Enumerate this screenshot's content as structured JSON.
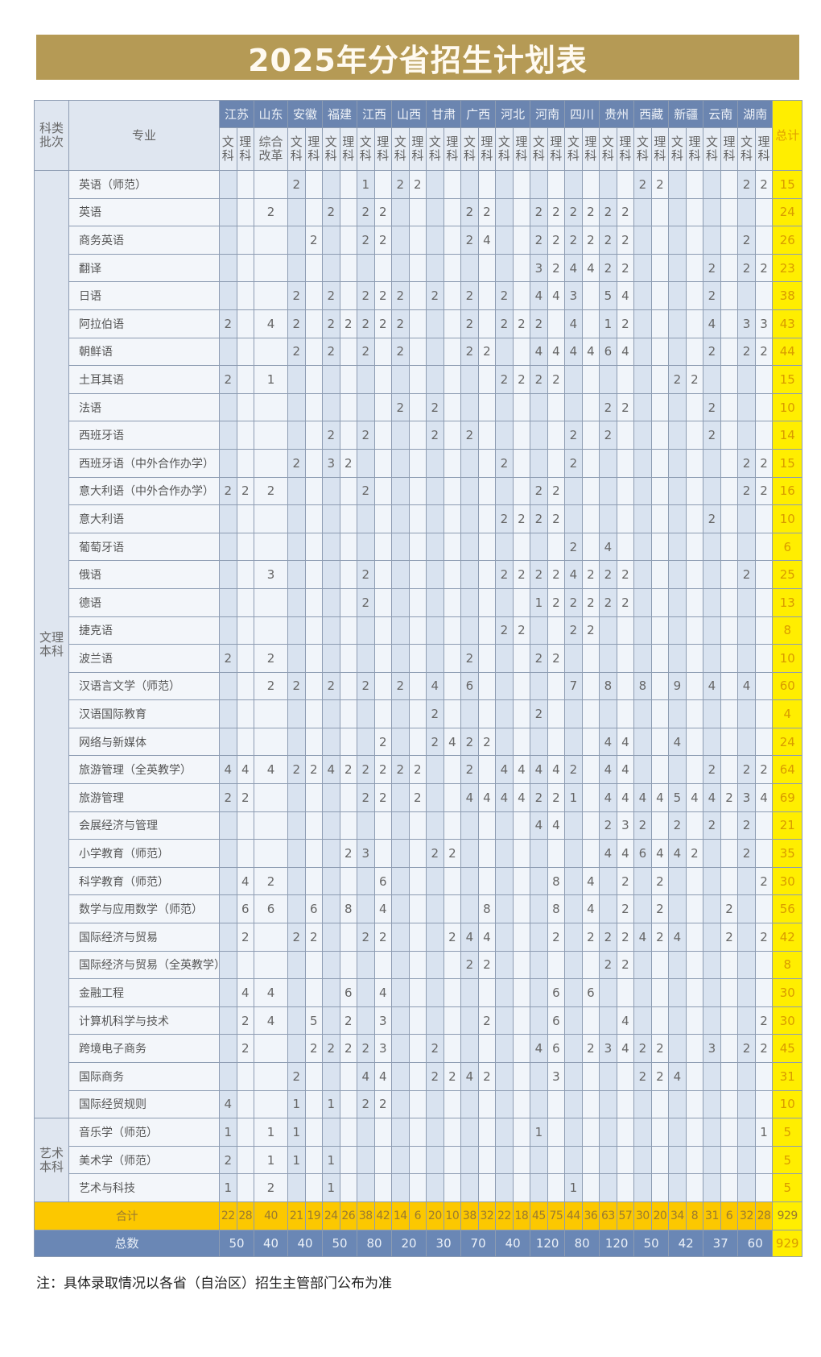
{
  "title": "2025年分省招生计划表",
  "header": {
    "category": "科类批次",
    "major": "专业",
    "total": "总计",
    "provinces": [
      "江苏",
      "山东",
      "安徽",
      "福建",
      "江西",
      "山西",
      "甘肃",
      "广西",
      "河北",
      "河南",
      "四川",
      "贵州",
      "西藏",
      "新疆",
      "云南",
      "湖南"
    ],
    "sub_wen": "文科",
    "sub_li": "理科",
    "sub_shandong": "综合改革"
  },
  "colors": {
    "banner": "#b59a55",
    "province_header": "#6b85b0",
    "total_column": "#ffee00",
    "sum_row": "#fcc800",
    "grand_row": "#6a87b5"
  },
  "groups": [
    {
      "category": "文理本科",
      "rows": [
        {
          "major": "英语（师范）",
          "cells": {
            "3": "2",
            "7": "1",
            "9": "2",
            "10": "2",
            "23": "2",
            "24": "2",
            "29": "2",
            "30": "2"
          },
          "total": "15"
        },
        {
          "major": "英语",
          "cells": {
            "2": "2",
            "5": "2",
            "7": "2",
            "8": "2",
            "13": "2",
            "14": "2",
            "17": "2",
            "18": "2",
            "19": "2",
            "20": "2",
            "21": "2",
            "22": "2"
          },
          "total": "24"
        },
        {
          "major": "商务英语",
          "cells": {
            "4": "2",
            "7": "2",
            "8": "2",
            "13": "2",
            "14": "4",
            "17": "2",
            "18": "2",
            "19": "2",
            "20": "2",
            "21": "2",
            "22": "2",
            "29": "2"
          },
          "total": "26"
        },
        {
          "major": "翻译",
          "cells": {
            "17": "3",
            "18": "2",
            "19": "4",
            "20": "4",
            "21": "2",
            "22": "2",
            "27": "2",
            "29": "2",
            "30": "2"
          },
          "total": "23"
        },
        {
          "major": "日语",
          "cells": {
            "3": "2",
            "5": "2",
            "7": "2",
            "8": "2",
            "9": "2",
            "11": "2",
            "13": "2",
            "15": "2",
            "17": "4",
            "18": "4",
            "19": "3",
            "21": "5",
            "22": "4",
            "27": "2"
          },
          "total": "38"
        },
        {
          "major": "阿拉伯语",
          "cells": {
            "0": "2",
            "2": "4",
            "3": "2",
            "5": "2",
            "6": "2",
            "7": "2",
            "8": "2",
            "9": "2",
            "13": "2",
            "15": "2",
            "16": "2",
            "17": "2",
            "19": "4",
            "21": "1",
            "22": "2",
            "27": "4",
            "29": "3",
            "30": "3"
          },
          "total": "43"
        },
        {
          "major": "朝鲜语",
          "cells": {
            "3": "2",
            "5": "2",
            "7": "2",
            "9": "2",
            "13": "2",
            "14": "2",
            "17": "4",
            "18": "4",
            "19": "4",
            "20": "4",
            "21": "6",
            "22": "4",
            "27": "2",
            "29": "2",
            "30": "2"
          },
          "total": "44"
        },
        {
          "major": "土耳其语",
          "cells": {
            "0": "2",
            "2": "1",
            "15": "2",
            "16": "2",
            "17": "2",
            "18": "2",
            "25": "2",
            "26": "2"
          },
          "total": "15"
        },
        {
          "major": "法语",
          "cells": {
            "9": "2",
            "11": "2",
            "21": "2",
            "22": "2",
            "27": "2"
          },
          "total": "10"
        },
        {
          "major": "西班牙语",
          "cells": {
            "5": "2",
            "7": "2",
            "11": "2",
            "13": "2",
            "19": "2",
            "21": "2",
            "27": "2"
          },
          "total": "14"
        },
        {
          "major": "西班牙语（中外合作办学）",
          "cells": {
            "3": "2",
            "5": "3",
            "6": "2",
            "15": "2",
            "19": "2",
            "29": "2",
            "30": "2"
          },
          "total": "15"
        },
        {
          "major": "意大利语（中外合作办学）",
          "cells": {
            "0": "2",
            "1": "2",
            "2": "2",
            "7": "2",
            "17": "2",
            "18": "2",
            "29": "2",
            "30": "2"
          },
          "total": "16"
        },
        {
          "major": "意大利语",
          "cells": {
            "15": "2",
            "16": "2",
            "17": "2",
            "18": "2",
            "27": "2"
          },
          "total": "10"
        },
        {
          "major": "葡萄牙语",
          "cells": {
            "19": "2",
            "21": "4"
          },
          "total": "6"
        },
        {
          "major": "俄语",
          "cells": {
            "2": "3",
            "7": "2",
            "15": "2",
            "16": "2",
            "17": "2",
            "18": "2",
            "19": "4",
            "20": "2",
            "21": "2",
            "22": "2",
            "29": "2"
          },
          "total": "25"
        },
        {
          "major": "德语",
          "cells": {
            "7": "2",
            "17": "1",
            "18": "2",
            "19": "2",
            "20": "2",
            "21": "2",
            "22": "2"
          },
          "total": "13"
        },
        {
          "major": "捷克语",
          "cells": {
            "15": "2",
            "16": "2",
            "19": "2",
            "20": "2"
          },
          "total": "8"
        },
        {
          "major": "波兰语",
          "cells": {
            "0": "2",
            "2": "2",
            "13": "2",
            "17": "2",
            "18": "2"
          },
          "total": "10"
        },
        {
          "major": "汉语言文学（师范）",
          "cells": {
            "2": "2",
            "3": "2",
            "5": "2",
            "7": "2",
            "9": "2",
            "11": "4",
            "13": "6",
            "19": "7",
            "21": "8",
            "23": "8",
            "25": "9",
            "27": "4",
            "29": "4"
          },
          "total": "60"
        },
        {
          "major": "汉语国际教育",
          "cells": {
            "11": "2",
            "17": "2"
          },
          "total": "4"
        },
        {
          "major": "网络与新媒体",
          "cells": {
            "8": "2",
            "11": "2",
            "12": "4",
            "13": "2",
            "14": "2",
            "21": "4",
            "22": "4",
            "25": "4"
          },
          "total": "24"
        },
        {
          "major": "旅游管理（全英教学）",
          "cells": {
            "0": "4",
            "1": "4",
            "2": "4",
            "3": "2",
            "4": "2",
            "5": "4",
            "6": "2",
            "7": "2",
            "8": "2",
            "9": "2",
            "10": "2",
            "13": "2",
            "15": "4",
            "16": "4",
            "17": "4",
            "18": "4",
            "19": "2",
            "21": "4",
            "22": "4",
            "27": "2",
            "29": "2",
            "30": "2"
          },
          "total": "64"
        },
        {
          "major": "旅游管理",
          "cells": {
            "0": "2",
            "1": "2",
            "7": "2",
            "8": "2",
            "10": "2",
            "13": "4",
            "14": "4",
            "15": "4",
            "16": "4",
            "17": "2",
            "18": "2",
            "19": "1",
            "21": "4",
            "22": "4",
            "23": "4",
            "24": "4",
            "25": "5",
            "26": "4",
            "27": "4",
            "28": "2",
            "29": "3",
            "30": "4"
          },
          "total": "69"
        },
        {
          "major": "会展经济与管理",
          "cells": {
            "17": "4",
            "18": "4",
            "21": "2",
            "22": "3",
            "23": "2",
            "25": "2",
            "27": "2",
            "29": "2"
          },
          "total": "21"
        },
        {
          "major": "小学教育（师范）",
          "cells": {
            "6": "2",
            "7": "3",
            "11": "2",
            "12": "2",
            "21": "4",
            "22": "4",
            "23": "6",
            "24": "4",
            "25": "4",
            "26": "2",
            "29": "2"
          },
          "total": "35"
        },
        {
          "major": "科学教育（师范）",
          "cells": {
            "1": "4",
            "2": "2",
            "8": "6",
            "18": "8",
            "20": "4",
            "22": "2",
            "24": "2",
            "30": "2"
          },
          "total": "30"
        },
        {
          "major": "数学与应用数学（师范）",
          "cells": {
            "1": "6",
            "2": "6",
            "4": "6",
            "6": "8",
            "8": "4",
            "14": "8",
            "18": "8",
            "20": "4",
            "22": "2",
            "24": "2",
            "28": "2"
          },
          "total": "56"
        },
        {
          "major": "国际经济与贸易",
          "cells": {
            "1": "2",
            "3": "2",
            "4": "2",
            "7": "2",
            "8": "2",
            "12": "2",
            "13": "4",
            "14": "4",
            "18": "2",
            "20": "2",
            "21": "2",
            "22": "2",
            "23": "4",
            "24": "2",
            "25": "4",
            "28": "2",
            "30": "2"
          },
          "total": "42"
        },
        {
          "major": "国际经济与贸易（全英教学）",
          "cells": {
            "13": "2",
            "14": "2",
            "21": "2",
            "22": "2"
          },
          "total": "8"
        },
        {
          "major": "金融工程",
          "cells": {
            "1": "4",
            "2": "4",
            "6": "6",
            "8": "4",
            "18": "6",
            "20": "6"
          },
          "total": "30"
        },
        {
          "major": "计算机科学与技术",
          "cells": {
            "1": "2",
            "2": "4",
            "4": "5",
            "6": "2",
            "8": "3",
            "14": "2",
            "18": "6",
            "22": "4",
            "30": "2"
          },
          "total": "30"
        },
        {
          "major": "跨境电子商务",
          "cells": {
            "1": "2",
            "4": "2",
            "5": "2",
            "6": "2",
            "7": "2",
            "8": "3",
            "11": "2",
            "17": "4",
            "18": "6",
            "20": "2",
            "21": "3",
            "22": "4",
            "23": "2",
            "24": "2",
            "27": "3",
            "29": "2",
            "30": "2"
          },
          "total": "45"
        },
        {
          "major": "国际商务",
          "cells": {
            "3": "2",
            "7": "4",
            "8": "4",
            "11": "2",
            "12": "2",
            "13": "4",
            "14": "2",
            "18": "3",
            "23": "2",
            "24": "2",
            "25": "4"
          },
          "total": "31"
        },
        {
          "major": "国际经贸规则",
          "cells": {
            "0": "4",
            "3": "1",
            "5": "1",
            "7": "2",
            "8": "2"
          },
          "total": "10"
        }
      ]
    },
    {
      "category": "艺术本科",
      "rows": [
        {
          "major": "音乐学（师范）",
          "cells": {
            "0": "1",
            "2": "1",
            "3": "1",
            "17": "1",
            "30": "1"
          },
          "total": "5"
        },
        {
          "major": "美术学（师范）",
          "cells": {
            "0": "2",
            "2": "1",
            "3": "1",
            "5": "1"
          },
          "total": "5"
        },
        {
          "major": "艺术与科技",
          "cells": {
            "0": "1",
            "2": "2",
            "5": "1",
            "19": "1"
          },
          "total": "5"
        }
      ]
    }
  ],
  "sum_row": {
    "label": "合计",
    "values": [
      "22",
      "28",
      "40",
      "21",
      "19",
      "24",
      "26",
      "38",
      "42",
      "14",
      "6",
      "20",
      "10",
      "38",
      "32",
      "22",
      "18",
      "45",
      "75",
      "44",
      "36",
      "63",
      "57",
      "30",
      "20",
      "34",
      "8",
      "31",
      "6",
      "32",
      "28"
    ],
    "total": "929"
  },
  "grand_row": {
    "label": "总数",
    "values": [
      "50",
      "40",
      "40",
      "50",
      "80",
      "20",
      "30",
      "70",
      "40",
      "120",
      "80",
      "120",
      "50",
      "42",
      "37",
      "60"
    ],
    "total": "929"
  },
  "note": "注：具体录取情况以各省（自治区）招生主管部门公布为准"
}
